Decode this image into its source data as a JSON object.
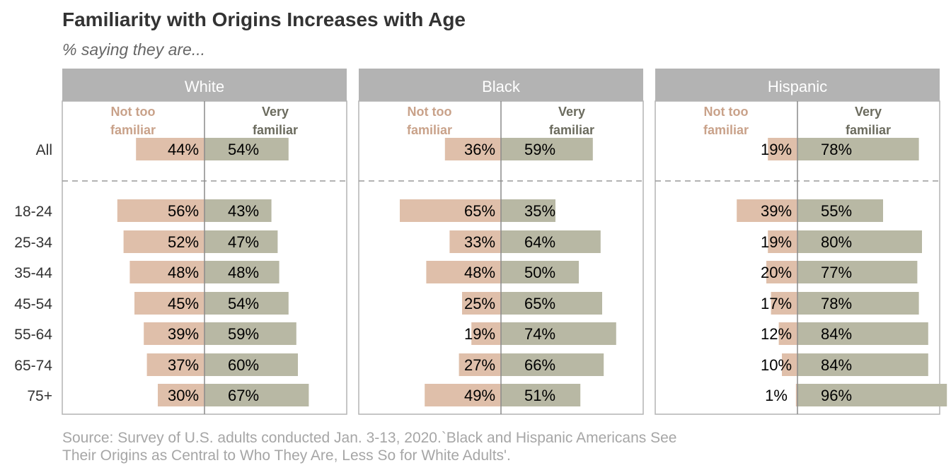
{
  "title": "Familiarity with Origins Increases with Age",
  "subtitle": "% saying they are...",
  "source": {
    "line1": "Source: Survey of U.S. adults conducted Jan. 3-13, 2020.`Black and Hispanic Americans See",
    "line2": "Their Origins as Central to Who They Are, Less So for White Adults'."
  },
  "colors": {
    "not_too_familiar": "#dfbfaa",
    "very_familiar": "#b8b8a4",
    "header_bg": "#b3b3b3",
    "label_not": "#c9a28a",
    "label_very": "#6b6b5e"
  },
  "chart_data": {
    "type": "bar",
    "orientation": "horizontal-diverging",
    "categories": [
      "All",
      "18-24",
      "25-34",
      "35-44",
      "45-54",
      "55-64",
      "65-74",
      "75+"
    ],
    "legend": [
      "Not too familiar",
      "Very familiar"
    ],
    "legend_lines": {
      "not_too": [
        "Not too",
        "familiar"
      ],
      "very": [
        "Very",
        "familiar"
      ]
    },
    "panels": [
      {
        "name": "White",
        "series": [
          {
            "name": "Not too familiar",
            "values": [
              44,
              56,
              52,
              48,
              45,
              39,
              37,
              30
            ],
            "labels": [
              "44%",
              "56%",
              "52%",
              "48%",
              "45%",
              "39%",
              "37%",
              "30%"
            ]
          },
          {
            "name": "Very familiar",
            "values": [
              54,
              43,
              47,
              48,
              54,
              59,
              60,
              67
            ],
            "labels": [
              "54%",
              "43%",
              "47%",
              "48%",
              "54%",
              "59%",
              "60%",
              "67%"
            ]
          }
        ]
      },
      {
        "name": "Black",
        "series": [
          {
            "name": "Not too familiar",
            "values": [
              36,
              65,
              33,
              48,
              25,
              19,
              27,
              49
            ],
            "labels": [
              "36%",
              "65%",
              "33%",
              "48%",
              "25%",
              "19%",
              "27%",
              "49%"
            ]
          },
          {
            "name": "Very familiar",
            "values": [
              59,
              35,
              64,
              50,
              65,
              74,
              66,
              51
            ],
            "labels": [
              "59%",
              "35%",
              "64%",
              "50%",
              "65%",
              "74%",
              "66%",
              "51%"
            ]
          }
        ]
      },
      {
        "name": "Hispanic",
        "series": [
          {
            "name": "Not too familiar",
            "values": [
              19,
              39,
              19,
              20,
              17,
              12,
              10,
              1
            ],
            "labels": [
              "19%",
              "39%",
              "19%",
              "20%",
              "17%",
              "12%",
              "10%",
              "1%"
            ]
          },
          {
            "name": "Very familiar",
            "values": [
              78,
              55,
              80,
              77,
              78,
              84,
              84,
              96
            ],
            "labels": [
              "78%",
              "55%",
              "80%",
              "77%",
              "78%",
              "84%",
              "84%",
              "96%"
            ]
          }
        ]
      }
    ]
  }
}
